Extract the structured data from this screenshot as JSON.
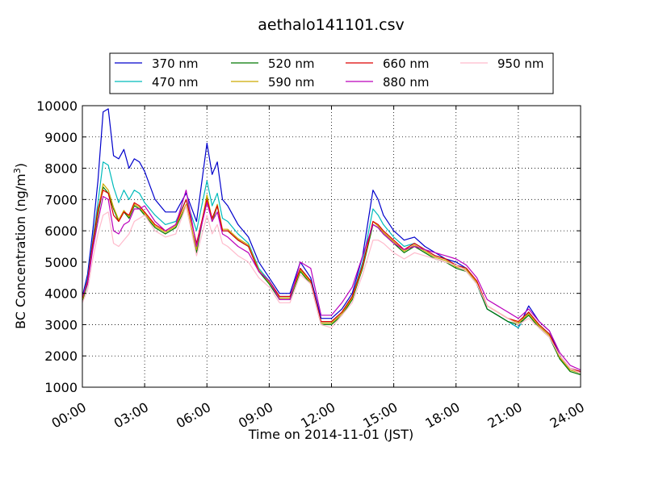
{
  "chart_data": {
    "type": "line",
    "title": "aethalo141101.csv",
    "xlabel": "Time on 2014-11-01 (JST)",
    "ylabel": "BC Concentration (ng/m",
    "ylabel_sup": "3",
    "ylabel_close": ")",
    "x_ticks": [
      "00:00",
      "03:00",
      "06:00",
      "09:00",
      "12:00",
      "15:00",
      "18:00",
      "21:00",
      "24:00"
    ],
    "x_tick_hours": [
      0,
      3,
      6,
      9,
      12,
      15,
      18,
      21,
      24
    ],
    "xlim": [
      0,
      24
    ],
    "ylim": [
      1000,
      10000
    ],
    "y_ticks": [
      1000,
      2000,
      3000,
      4000,
      5000,
      6000,
      7000,
      8000,
      9000,
      10000
    ],
    "y_tick_labels": [
      "1000",
      "2000",
      "3000",
      "4000",
      "5000",
      "6000",
      "7000",
      "8000",
      "9000",
      "10000"
    ],
    "grid": true,
    "legend_position": "top",
    "x": [
      0,
      0.25,
      0.5,
      0.75,
      1,
      1.25,
      1.5,
      1.75,
      2,
      2.25,
      2.5,
      2.75,
      3,
      3.5,
      4,
      4.5,
      5,
      5.5,
      6,
      6.25,
      6.5,
      6.75,
      7,
      7.5,
      8,
      8.5,
      9,
      9.5,
      10,
      10.5,
      11,
      11.5,
      12,
      12.5,
      13,
      13.5,
      14,
      14.25,
      14.5,
      15,
      15.5,
      16,
      16.5,
      17,
      17.5,
      18,
      18.5,
      19,
      19.5,
      20,
      20.5,
      21,
      21.5,
      22,
      22.5,
      23,
      23.5,
      24
    ],
    "series": [
      {
        "name": "370 nm",
        "color": "#0000cc",
        "values": [
          3900,
          4600,
          6000,
          7600,
          9800,
          9900,
          8400,
          8300,
          8600,
          8000,
          8300,
          8200,
          7900,
          7000,
          6600,
          6600,
          7200,
          6300,
          8800,
          7800,
          8200,
          7000,
          6800,
          6200,
          5800,
          5000,
          4500,
          4000,
          4000,
          5000,
          4500,
          3200,
          3200,
          3500,
          4000,
          5200,
          7300,
          7000,
          6500,
          6000,
          5700,
          5800,
          5500,
          5300,
          5100,
          5000,
          4800,
          4300,
          3500,
          3300,
          3100,
          2900,
          3600,
          3100,
          2800,
          2000,
          1600,
          1500
        ]
      },
      {
        "name": "470 nm",
        "color": "#00bbbb",
        "values": [
          3850,
          4450,
          5700,
          6900,
          8200,
          8100,
          7400,
          6900,
          7300,
          7000,
          7300,
          7200,
          6900,
          6500,
          6200,
          6300,
          7000,
          6000,
          7600,
          6800,
          7200,
          6400,
          6300,
          5900,
          5600,
          4800,
          4400,
          3900,
          3900,
          4800,
          4400,
          3100,
          3100,
          3400,
          3900,
          5000,
          6700,
          6500,
          6200,
          5800,
          5500,
          5600,
          5400,
          5200,
          5100,
          4900,
          4800,
          4300,
          3500,
          3300,
          3100,
          2900,
          3400,
          3000,
          2700,
          1900,
          1550,
          1450
        ]
      },
      {
        "name": "520 nm",
        "color": "#007700",
        "values": [
          3750,
          4300,
          5500,
          6500,
          7400,
          7200,
          6700,
          6300,
          6600,
          6400,
          6800,
          6700,
          6500,
          6100,
          5900,
          6100,
          6800,
          5300,
          7100,
          6300,
          6800,
          6000,
          6000,
          5700,
          5500,
          4700,
          4300,
          3800,
          3800,
          4700,
          4300,
          3000,
          3000,
          3300,
          3800,
          4800,
          6200,
          6100,
          5900,
          5600,
          5300,
          5500,
          5300,
          5100,
          5000,
          4800,
          4700,
          4300,
          3500,
          3300,
          3100,
          3000,
          3300,
          2900,
          2600,
          1900,
          1500,
          1400
        ]
      },
      {
        "name": "590 nm",
        "color": "#ccaa00",
        "values": [
          3800,
          4350,
          5550,
          6600,
          7500,
          7300,
          6750,
          6350,
          6650,
          6450,
          6850,
          6750,
          6550,
          6150,
          5950,
          6150,
          6850,
          5400,
          7150,
          6350,
          6850,
          6050,
          6050,
          5750,
          5550,
          4750,
          4350,
          3850,
          3850,
          4750,
          4350,
          3050,
          3050,
          3350,
          3850,
          4850,
          6300,
          6150,
          5950,
          5650,
          5350,
          5550,
          5350,
          5150,
          5050,
          4850,
          4750,
          4350,
          3600,
          3400,
          3200,
          3050,
          3350,
          2950,
          2650,
          1950,
          1550,
          1450
        ]
      },
      {
        "name": "660 nm",
        "color": "#dd0000",
        "values": [
          3850,
          4400,
          5600,
          6700,
          7300,
          7200,
          6500,
          6300,
          6600,
          6500,
          6900,
          6800,
          6600,
          6200,
          6000,
          6200,
          7000,
          5600,
          7000,
          6400,
          6800,
          6000,
          6000,
          5700,
          5500,
          4700,
          4400,
          3900,
          3900,
          4800,
          4400,
          3100,
          3100,
          3400,
          3900,
          4900,
          6300,
          6200,
          6000,
          5700,
          5400,
          5600,
          5400,
          5200,
          5100,
          4900,
          4800,
          4400,
          3600,
          3400,
          3200,
          3100,
          3400,
          3000,
          2700,
          2000,
          1600,
          1500
        ]
      },
      {
        "name": "880 nm",
        "color": "#bb00bb",
        "values": [
          3900,
          4300,
          5400,
          6300,
          7100,
          7000,
          6000,
          5900,
          6200,
          6300,
          6700,
          6700,
          6800,
          6300,
          6000,
          6200,
          7300,
          5500,
          6900,
          6300,
          6600,
          5900,
          5800,
          5500,
          5300,
          4700,
          4400,
          3800,
          3800,
          5000,
          4800,
          3300,
          3300,
          3700,
          4200,
          5200,
          6200,
          6100,
          5900,
          5600,
          5400,
          5500,
          5400,
          5300,
          5200,
          5100,
          4900,
          4500,
          3800,
          3600,
          3400,
          3200,
          3500,
          3100,
          2800,
          2100,
          1700,
          1550
        ]
      },
      {
        "name": "950 nm",
        "color": "#ffbbcc",
        "values": [
          3700,
          4100,
          5100,
          5900,
          6500,
          6600,
          5600,
          5500,
          5700,
          5900,
          6300,
          6400,
          6500,
          6000,
          5800,
          5900,
          6800,
          5200,
          6500,
          5900,
          6200,
          5600,
          5500,
          5200,
          5000,
          4500,
          4200,
          3700,
          3700,
          4600,
          4300,
          3000,
          2900,
          3300,
          3700,
          4600,
          5700,
          5700,
          5600,
          5300,
          5100,
          5300,
          5200,
          5100,
          5000,
          4900,
          4700,
          4300,
          3600,
          3400,
          3200,
          3000,
          3200,
          2900,
          2600,
          2000,
          1600,
          1450
        ]
      }
    ]
  }
}
